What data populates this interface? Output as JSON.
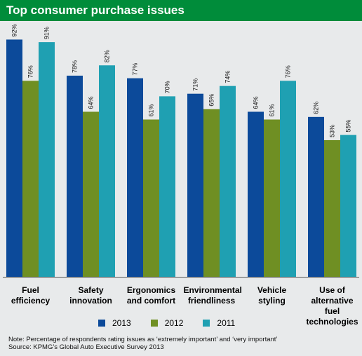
{
  "title": "Top consumer purchase issues",
  "colors": {
    "header_bg": "#008c3a",
    "s2013": "#0c4a9a",
    "s2012": "#6f8f23",
    "s2011": "#1fa0b2"
  },
  "chart_data": {
    "type": "bar",
    "categories": [
      "Fuel efficiency",
      "Safety innovation",
      "Ergonomics and comfort",
      "Environmental friendliness",
      "Vehicle styling",
      "Use of alternative fuel technologies"
    ],
    "category_lines": [
      [
        "Fuel",
        "efficiency"
      ],
      [
        "Safety",
        "innovation"
      ],
      [
        "Ergonomics",
        "and comfort"
      ],
      [
        "Environmental",
        "friendliness"
      ],
      [
        "Vehicle",
        "styling"
      ],
      [
        "Use of",
        "alternative",
        "fuel",
        "technologies"
      ]
    ],
    "series": [
      {
        "name": "2013",
        "values": [
          92,
          78,
          77,
          71,
          64,
          62
        ],
        "labels": [
          "92%",
          "78%",
          "77%",
          "71%",
          "64%",
          "62%"
        ]
      },
      {
        "name": "2012",
        "values": [
          76,
          64,
          61,
          65,
          61,
          53
        ],
        "labels": [
          "76%",
          "64%",
          "61%",
          "65%",
          "61%",
          "53%"
        ]
      },
      {
        "name": "2011",
        "values": [
          91,
          82,
          70,
          74,
          76,
          55
        ],
        "labels": [
          "91%",
          "82%",
          "70%",
          "74%",
          "76%",
          "55%"
        ]
      }
    ],
    "ylim": [
      0,
      100
    ],
    "legend_position": "bottom",
    "grid": false
  },
  "legend": [
    "2013",
    "2012",
    "2011"
  ],
  "note_line1": "Note: Percentage of respondents rating issues as ‘extremely important’ and ‘very important’",
  "note_line2": "Source: KPMG’s Global Auto Executive Survey 2013"
}
